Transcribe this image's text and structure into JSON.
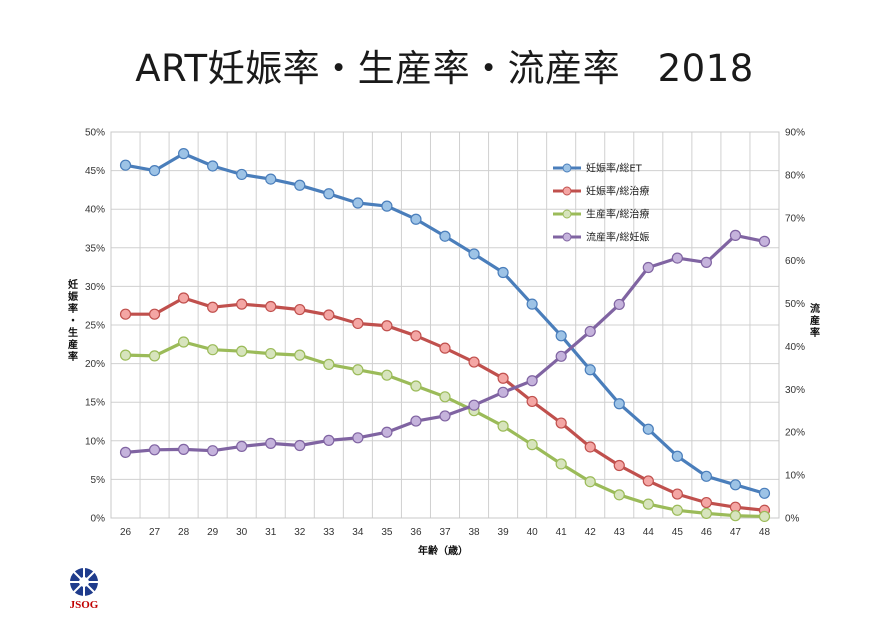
{
  "slide": {
    "title": "ART妊娠率・生産率・流産率　2018",
    "logo_text": "JSOG"
  },
  "chart_data": {
    "type": "line",
    "title": "ART妊娠率・生産率・流産率　2018",
    "xlabel": "年齢（歳）",
    "ylabel_left": "妊娠率・生産率",
    "ylabel_right": "流産率",
    "x": [
      26,
      27,
      28,
      29,
      30,
      31,
      32,
      33,
      34,
      35,
      36,
      37,
      38,
      39,
      40,
      41,
      42,
      43,
      44,
      45,
      46,
      47,
      48
    ],
    "y_left": {
      "min": 0,
      "max": 50,
      "step": 5,
      "unit": "%"
    },
    "y_right": {
      "min": 0,
      "max": 90,
      "step": 10,
      "unit": "%"
    },
    "grid": true,
    "legend_position": "top-right",
    "series": [
      {
        "name": "妊娠率/総ET",
        "axis": "left",
        "color": "#4a7ebb",
        "marker": "#9dc3e6",
        "values": [
          45.7,
          45.0,
          47.2,
          45.6,
          44.5,
          43.9,
          43.1,
          42.0,
          40.8,
          40.4,
          38.7,
          36.5,
          34.2,
          31.8,
          27.7,
          23.6,
          19.2,
          14.8,
          11.5,
          8.0,
          5.4,
          4.3,
          3.2
        ]
      },
      {
        "name": "妊娠率/総治療",
        "axis": "left",
        "color": "#c0504d",
        "marker": "#f4a6a4",
        "values": [
          26.4,
          26.4,
          28.5,
          27.3,
          27.7,
          27.4,
          27.0,
          26.3,
          25.2,
          24.9,
          23.6,
          22.0,
          20.2,
          18.1,
          15.1,
          12.3,
          9.2,
          6.8,
          4.8,
          3.1,
          2.0,
          1.4,
          1.0
        ]
      },
      {
        "name": "生産率/総治療",
        "axis": "left",
        "color": "#9bbb59",
        "marker": "#d7e4bd",
        "values": [
          21.1,
          21.0,
          22.8,
          21.8,
          21.6,
          21.3,
          21.1,
          19.9,
          19.2,
          18.5,
          17.1,
          15.7,
          13.9,
          11.9,
          9.5,
          7.0,
          4.7,
          3.0,
          1.8,
          1.0,
          0.6,
          0.3,
          0.2
        ]
      },
      {
        "name": "流産率/総妊娠",
        "axis": "right",
        "color": "#8064a2",
        "marker": "#c5b3dc",
        "values": [
          15.3,
          15.9,
          16.0,
          15.7,
          16.7,
          17.4,
          16.9,
          18.1,
          18.7,
          20.0,
          22.6,
          23.8,
          26.3,
          29.3,
          32.0,
          37.7,
          43.5,
          49.8,
          58.4,
          60.6,
          59.6,
          65.9,
          64.5
        ]
      }
    ]
  }
}
